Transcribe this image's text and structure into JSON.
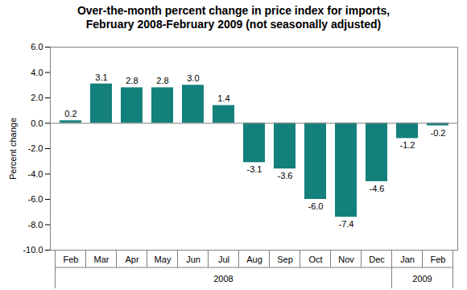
{
  "chart_data": {
    "type": "bar",
    "title": "Over-the-month percent change in price index for imports,\nFebruary 2008-February 2009 (not seasonally adjusted)",
    "y_label": "Percent change",
    "categories": [
      "Feb",
      "Mar",
      "Apr",
      "May",
      "Jun",
      "Jul",
      "Aug",
      "Sep",
      "Oct",
      "Nov",
      "Dec",
      "Jan",
      "Feb"
    ],
    "groups": [
      "2008",
      "2008",
      "2008",
      "2008",
      "2008",
      "2008",
      "2008",
      "2008",
      "2008",
      "2008",
      "2008",
      "2009",
      "2009"
    ],
    "values": [
      0.2,
      3.1,
      2.8,
      2.8,
      3.0,
      1.4,
      -3.1,
      -3.6,
      -6.0,
      -7.4,
      -4.6,
      -1.2,
      -0.2
    ],
    "value_labels": [
      "0.2",
      "3.1",
      "2.8",
      "2.8",
      "3.0",
      "1.4",
      "-3.1",
      "-3.6",
      "-6.0",
      "-7.4",
      "-4.6",
      "-1.2",
      "-0.2"
    ],
    "color": "#13807b",
    "ylim": [
      -10,
      6
    ],
    "yticks": [
      {
        "value": -10,
        "label": "-10.0"
      },
      {
        "value": -8,
        "label": "-8.0"
      },
      {
        "value": -6,
        "label": "-6.0"
      },
      {
        "value": -4,
        "label": "-4.0"
      },
      {
        "value": -2,
        "label": "-2.0"
      },
      {
        "value": 0,
        "label": "0.0"
      },
      {
        "value": 2,
        "label": "2.0"
      },
      {
        "value": 4,
        "label": "4.0"
      },
      {
        "value": 6,
        "label": "6.0"
      }
    ],
    "grid": false,
    "data_labels": true
  }
}
